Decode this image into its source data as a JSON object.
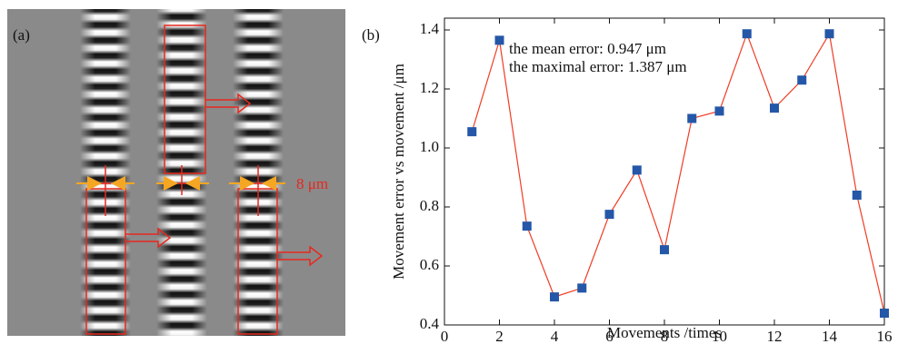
{
  "panel_a": {
    "label": "(a)",
    "scale_label": "8 μm"
  },
  "chart_data": {
    "type": "line",
    "panel_label": "(b)",
    "x_label": "Movements /times",
    "y_label": "Movement error vs movement /μm",
    "annotations": [
      "the mean error: 0.947 μm",
      "the maximal error: 1.387 μm"
    ],
    "x": [
      1,
      2,
      3,
      4,
      5,
      6,
      7,
      8,
      9,
      10,
      11,
      12,
      13,
      14,
      15,
      16
    ],
    "series": [
      {
        "color": "#f03c24",
        "marker_color": "#2457a8",
        "values": [
          1.055,
          1.365,
          0.735,
          0.495,
          0.525,
          0.775,
          0.925,
          0.655,
          1.1,
          1.125,
          1.387,
          1.135,
          1.23,
          1.387,
          0.84,
          0.44
        ]
      }
    ],
    "xlim": [
      0,
      16
    ],
    "xticks": [
      0,
      2,
      4,
      6,
      8,
      10,
      12,
      14,
      16
    ],
    "ylim": [
      0.4,
      1.4
    ],
    "yticks": [
      0.4,
      0.6,
      0.8,
      {
        "value": 1,
        "label": "1.0"
      },
      1.2,
      1.4
    ]
  }
}
